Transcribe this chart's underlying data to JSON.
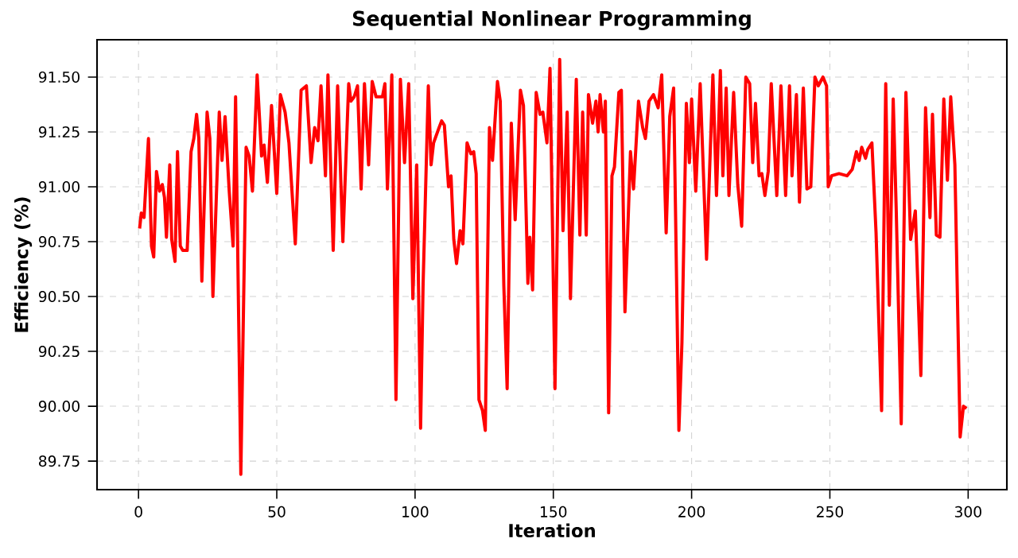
{
  "chart_data": {
    "type": "line",
    "title": "Sequential Nonlinear Programming",
    "xlabel": "Iteration",
    "ylabel": "Efficiency (%)",
    "xlim": [
      -15,
      314
    ],
    "ylim": [
      89.62,
      91.67
    ],
    "xticks": [
      0,
      50,
      100,
      150,
      200,
      250,
      300
    ],
    "yticks": [
      {
        "value": 89.75,
        "label": "89.75"
      },
      {
        "value": 90.0,
        "label": "90.00"
      },
      {
        "value": 90.25,
        "label": "90.25"
      },
      {
        "value": 90.5,
        "label": "90.50"
      },
      {
        "value": 90.75,
        "label": "90.75"
      },
      {
        "value": 91.0,
        "label": "91.00"
      },
      {
        "value": 91.25,
        "label": "91.25"
      },
      {
        "value": 91.5,
        "label": "91.50"
      }
    ],
    "grid": true,
    "series": [
      {
        "color": "#ff0000",
        "x": [
          0.4,
          1,
          2,
          3.6,
          4.7,
          5.5,
          6.5,
          7.6,
          8.6,
          9.4,
          10.1,
          11.3,
          12,
          13.2,
          14.1,
          15.1,
          16,
          17.6,
          19,
          20,
          21,
          21.8,
          22.9,
          24.8,
          25.8,
          26.9,
          29.2,
          30.2,
          31.3,
          32.8,
          34.2,
          35.1,
          37,
          38.9,
          40,
          41.2,
          42.9,
          44.5,
          45.4,
          46.6,
          48.1,
          50,
          51.3,
          53,
          54.4,
          56.7,
          58.8,
          60.7,
          62.4,
          63.7,
          64.9,
          66,
          67.6,
          68.5,
          70.4,
          72,
          73.9,
          76,
          76.8,
          78,
          79.2,
          80.5,
          81.7,
          83.2,
          84.5,
          85.9,
          88.2,
          89.1,
          90,
          91.6,
          93.1,
          94.7,
          96.2,
          97.7,
          99.2,
          100.6,
          102,
          102.9,
          104.8,
          105.8,
          106.7,
          108.7,
          109.6,
          110.6,
          112.1,
          113,
          114,
          115,
          116.3,
          117.3,
          118.8,
          120.2,
          121.2,
          122.1,
          123.1,
          124.4,
          125.4,
          126.9,
          128,
          129.8,
          130.8,
          132.1,
          133.3,
          134.8,
          136.2,
          138.1,
          139.2,
          140.8,
          141.5,
          142.5,
          143.8,
          145.2,
          146.2,
          147.7,
          148.8,
          150.6,
          152.3,
          153.5,
          155,
          156.2,
          158.3,
          159.6,
          160.6,
          161.9,
          162.7,
          164.2,
          165.4,
          166.2,
          166.9,
          168.1,
          168.8,
          170,
          171.2,
          172.1,
          173.7,
          174.6,
          175.9,
          177.9,
          179,
          180.8,
          182.3,
          183.3,
          184.6,
          186.2,
          187.9,
          189.2,
          190.8,
          192.1,
          193.5,
          195.4,
          196.5,
          198.1,
          199.2,
          200,
          201.5,
          203.1,
          205.4,
          207.7,
          209,
          210.4,
          211.3,
          212.5,
          213.5,
          215.2,
          216.7,
          218.1,
          219.6,
          221,
          222.1,
          223.1,
          224.4,
          225.4,
          226.5,
          227.7,
          228.8,
          230.8,
          232.3,
          234,
          235.4,
          236.3,
          237.9,
          239,
          240.4,
          241.7,
          243.1,
          244.6,
          245.8,
          247.5,
          248.8,
          249.4,
          250.6,
          253.3,
          256.2,
          258.1,
          259.6,
          260.6,
          261.5,
          262.9,
          263.7,
          265.2,
          266.7,
          268.7,
          270.2,
          271.5,
          272.9,
          274,
          275.8,
          277.5,
          279.2,
          280.9,
          282.9,
          284.6,
          286.2,
          287.1,
          288.5,
          289.8,
          291.2,
          292.5,
          293.7,
          295.2,
          297.1,
          298.3,
          299.4
        ],
        "values": [
          90.81,
          90.88,
          90.86,
          91.22,
          90.73,
          90.68,
          91.07,
          90.98,
          91.01,
          90.95,
          90.77,
          91.1,
          90.76,
          90.66,
          91.16,
          90.73,
          90.71,
          90.71,
          91.16,
          91.22,
          91.33,
          91.22,
          90.57,
          91.34,
          91.22,
          90.5,
          91.34,
          91.12,
          91.32,
          90.98,
          90.73,
          91.41,
          89.69,
          91.18,
          91.14,
          90.98,
          91.51,
          91.14,
          91.19,
          91.02,
          91.37,
          90.97,
          91.42,
          91.34,
          91.2,
          90.74,
          91.44,
          91.46,
          91.11,
          91.27,
          91.21,
          91.46,
          91.05,
          91.51,
          90.71,
          91.46,
          90.75,
          91.47,
          91.39,
          91.41,
          91.46,
          90.99,
          91.47,
          91.1,
          91.48,
          91.41,
          91.41,
          91.47,
          90.99,
          91.51,
          90.03,
          91.49,
          91.11,
          91.47,
          90.49,
          91.1,
          89.9,
          90.55,
          91.46,
          91.1,
          91.2,
          91.27,
          91.3,
          91.28,
          91.0,
          91.05,
          90.76,
          90.65,
          90.8,
          90.74,
          91.2,
          91.15,
          91.16,
          91.06,
          90.03,
          89.98,
          89.89,
          91.27,
          91.12,
          91.48,
          91.39,
          90.55,
          90.08,
          91.29,
          90.85,
          91.44,
          91.37,
          90.56,
          90.77,
          90.53,
          91.43,
          91.33,
          91.34,
          91.2,
          91.54,
          90.08,
          91.58,
          90.8,
          91.34,
          90.49,
          91.49,
          90.78,
          91.34,
          90.78,
          91.42,
          91.29,
          91.39,
          91.25,
          91.42,
          91.25,
          91.39,
          89.97,
          91.05,
          91.09,
          91.43,
          91.44,
          90.43,
          91.16,
          90.99,
          91.39,
          91.27,
          91.22,
          91.39,
          91.42,
          91.36,
          91.51,
          90.79,
          91.32,
          91.45,
          89.89,
          90.29,
          91.38,
          91.11,
          91.4,
          90.98,
          91.47,
          90.67,
          91.51,
          90.96,
          91.53,
          91.05,
          91.45,
          90.96,
          91.43,
          91.01,
          90.82,
          91.5,
          91.47,
          91.11,
          91.38,
          91.05,
          91.06,
          90.96,
          91.07,
          91.47,
          90.96,
          91.46,
          90.96,
          91.46,
          91.05,
          91.42,
          90.93,
          91.45,
          90.99,
          91.0,
          91.5,
          91.46,
          91.5,
          91.46,
          91.0,
          91.05,
          91.06,
          91.05,
          91.08,
          91.16,
          91.12,
          91.18,
          91.13,
          91.17,
          91.2,
          90.79,
          89.98,
          91.47,
          90.46,
          91.4,
          90.89,
          89.92,
          91.43,
          90.76,
          90.89,
          90.14,
          91.36,
          90.86,
          91.33,
          90.78,
          90.77,
          91.4,
          91.03,
          91.41,
          91.1,
          89.86,
          90.0,
          89.99
        ]
      }
    ]
  }
}
